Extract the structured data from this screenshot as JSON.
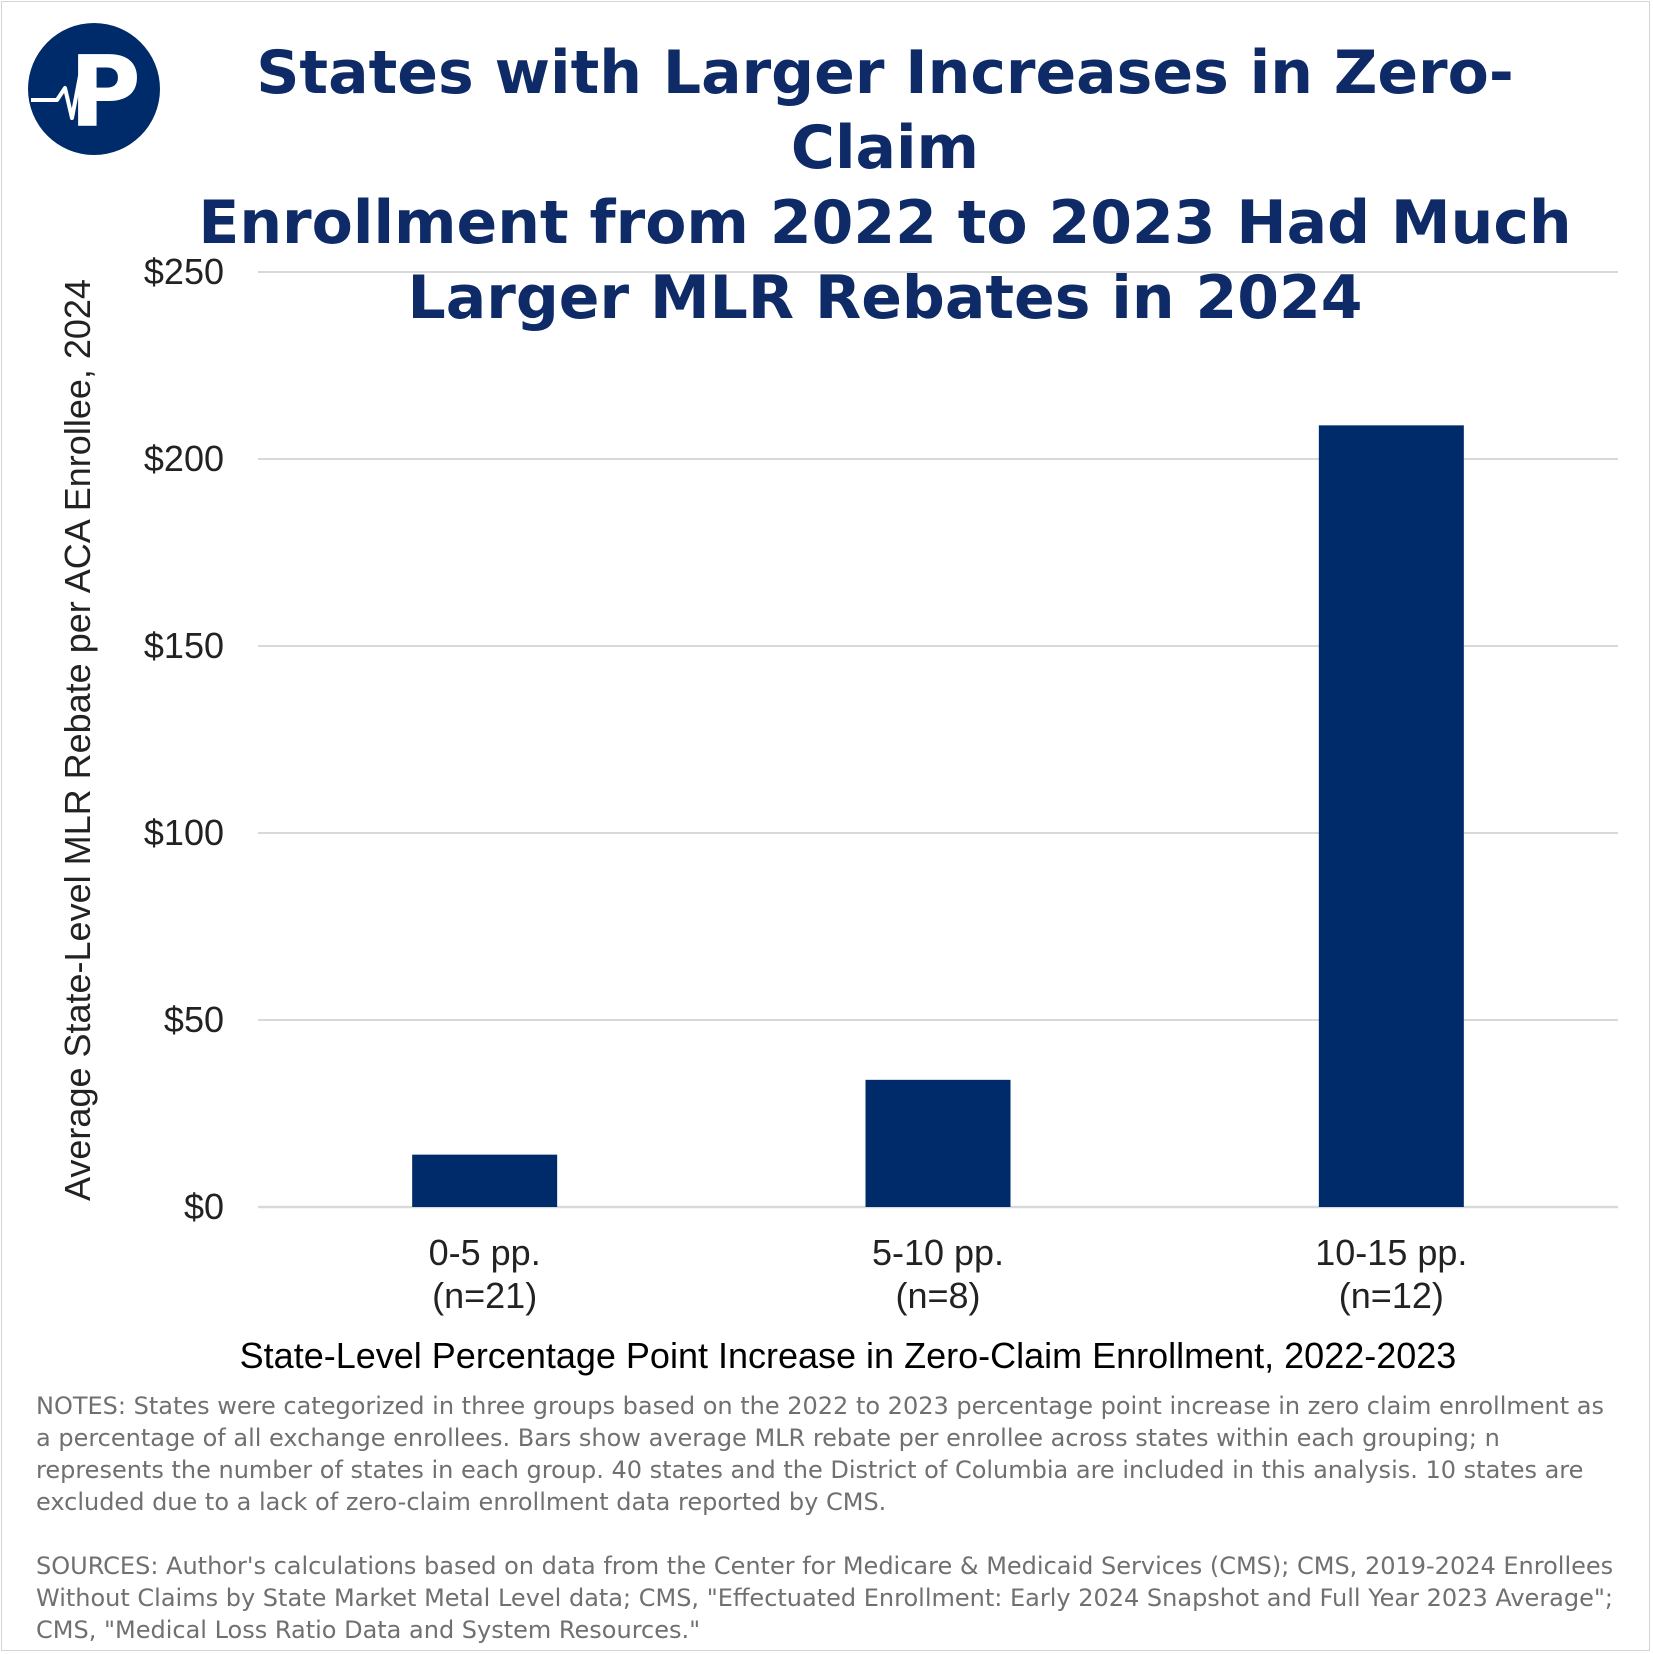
{
  "brand": {
    "logo_letter": "P",
    "primary_color": "#002b6b",
    "title_color": "#0e2b67"
  },
  "title_lines": [
    "States with Larger Increases in Zero-Claim",
    "Enrollment from 2022 to 2023 Had Much",
    "Larger MLR Rebates in 2024"
  ],
  "chart_data": {
    "type": "bar",
    "title": "States with Larger Increases in Zero-Claim Enrollment from 2022 to 2023 Had Much Larger MLR Rebates in 2024",
    "categories": [
      {
        "label": "0-5 pp.",
        "n": "(n=21)"
      },
      {
        "label": "5-10 pp.",
        "n": "(n=8)"
      },
      {
        "label": "10-15 pp.",
        "n": "(n=12)"
      }
    ],
    "values": [
      14,
      34,
      209
    ],
    "xlabel": "State-Level Percentage Point Increase in Zero-Claim Enrollment, 2022-2023",
    "ylabel": "Average State-Level MLR Rebate per ACA Enrollee, 2024",
    "ylim": [
      0,
      250
    ],
    "yticks": [
      0,
      50,
      100,
      150,
      200,
      250
    ],
    "ytick_labels": [
      "$0",
      "$50",
      "$100",
      "$150",
      "$200",
      "$250"
    ],
    "grid": true,
    "bar_color": "#002b6b",
    "grid_color": "#d9d9d9"
  },
  "notes": "NOTES: States were categorized in three groups based on the 2022 to 2023 percentage point increase in zero claim enrollment as a percentage of all exchange enrollees. Bars show average MLR rebate per enrollee across states within each grouping; n represents the number of states in each group. 40 states and the District of Columbia are included in this analysis. 10 states are excluded due to a lack of zero-claim enrollment data reported by CMS.",
  "sources": "SOURCES: Author's calculations based on data from the Center for Medicare & Medicaid Services (CMS); CMS, 2019-2024 Enrollees Without Claims by State Market Metal Level data;  CMS, \"Effectuated Enrollment: Early 2024 Snapshot and Full Year 2023 Average\"; CMS, \"Medical Loss Ratio Data and System Resources.\""
}
